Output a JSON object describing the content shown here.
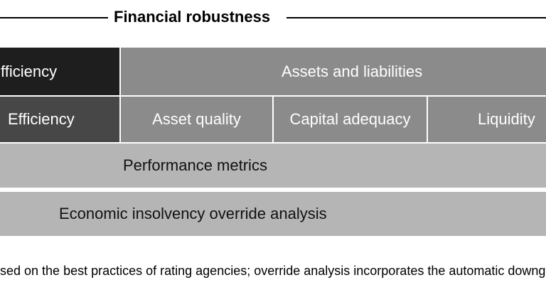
{
  "header": {
    "title": "Financial robustness"
  },
  "grid": {
    "top_row": [
      {
        "label": "fficiency"
      },
      {
        "label": "Assets and liabilities"
      }
    ],
    "category_row": [
      {
        "label": "Efficiency"
      },
      {
        "label": "Asset quality"
      },
      {
        "label": "Capital adequacy"
      },
      {
        "label": "Liquidity"
      }
    ],
    "bars": [
      {
        "label": "Performance metrics"
      },
      {
        "label": "Economic insolvency override analysis"
      }
    ]
  },
  "footnote": "sed on the best practices of rating agencies; override analysis incorporates the automatic downg",
  "colors": {
    "box_darkest": "#1e1e1e",
    "box_dark": "#474747",
    "box_medium": "#8b8b8b",
    "box_light": "#b5b5b5",
    "text_on_dark": "#ffffff",
    "text_dark": "#111111",
    "rule": "#000000",
    "background": "#ffffff"
  }
}
